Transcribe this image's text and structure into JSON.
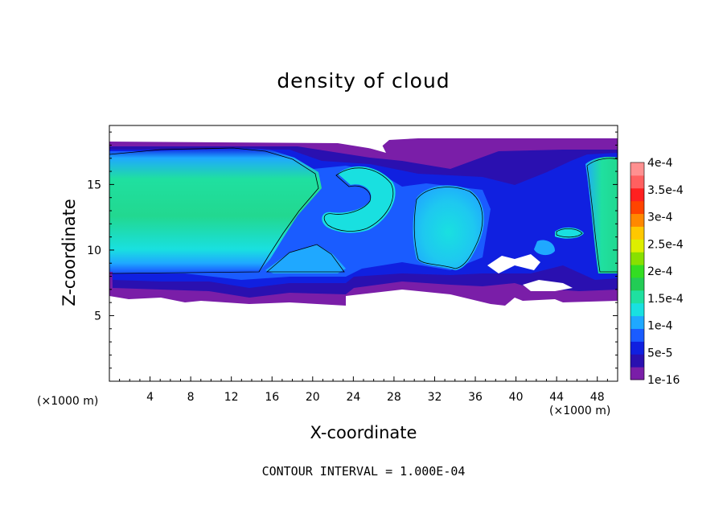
{
  "chart_data": {
    "type": "heatmap",
    "title": "density of cloud",
    "xlabel": "X-coordinate",
    "ylabel": "Z-coordinate",
    "x_units": "(×1000 m)",
    "x_units_right": "(×1000 m)",
    "xlim": [
      0,
      50
    ],
    "ylim": [
      0,
      19.5
    ],
    "x_ticks": [
      "4",
      "8",
      "12",
      "16",
      "20",
      "24",
      "28",
      "32",
      "36",
      "40",
      "44",
      "48"
    ],
    "y_ticks": [
      "5",
      "10",
      "15"
    ],
    "colorbar": {
      "levels": [
        "1e-16",
        "5e-5",
        "1e-4",
        "1.5e-4",
        "2e-4",
        "2.5e-4",
        "3e-4",
        "3.5e-4",
        "4e-4"
      ],
      "colors": [
        "#7a1ea8",
        "#2a10b0",
        "#1020e0",
        "#1a5cff",
        "#1fa8ff",
        "#19e0e0",
        "#1fe0a0",
        "#22cc55",
        "#33dd22",
        "#88e000",
        "#ddee00",
        "#ffc800",
        "#ff8800",
        "#ff4400",
        "#ff2020",
        "#ff6060",
        "#ff9090"
      ]
    },
    "contour_level": 0.0001,
    "field_description_regions": [
      {
        "x_range": [
          0,
          23
        ],
        "z_range": [
          6.3,
          18.8
        ],
        "peak": 0.00016
      },
      {
        "x_range": [
          24,
          36
        ],
        "z_range": [
          9,
          15
        ],
        "peak": 0.00014
      },
      {
        "x_range": [
          46,
          50
        ],
        "z_range": [
          8,
          17
        ],
        "peak": 0.00017
      }
    ]
  },
  "footer": {
    "contour_interval": "CONTOUR INTERVAL = 1.000E-04"
  }
}
